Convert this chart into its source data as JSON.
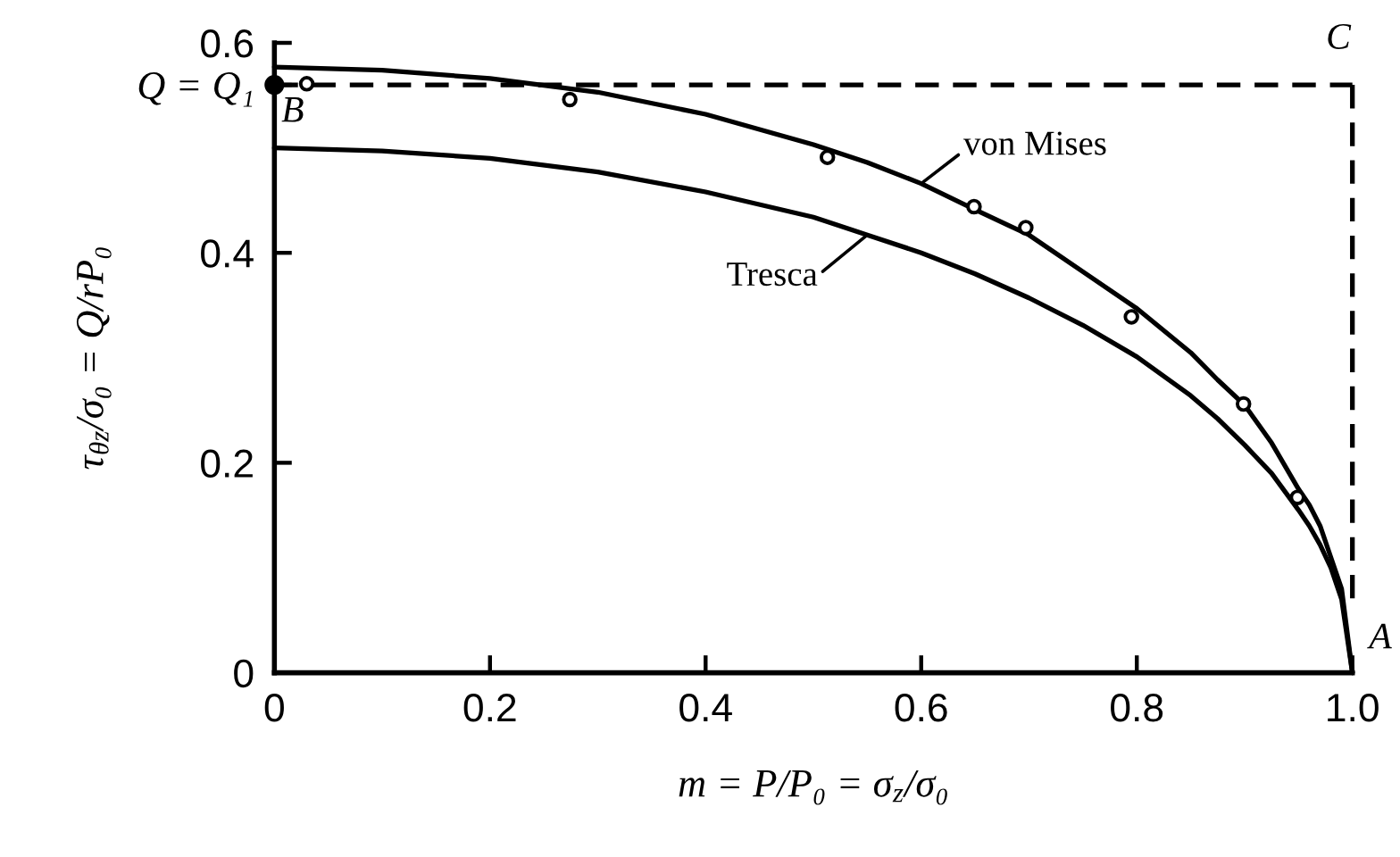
{
  "chart_data": {
    "type": "line",
    "xlabel": "m = P/P₀ = σ$_{z}$/σ₀",
    "ylabel": "τ$_{θz}$/σ₀ = Q/rP₀",
    "xlim": [
      0,
      1.0
    ],
    "ylim": [
      0,
      0.6
    ],
    "xticks": [
      0,
      0.2,
      0.4,
      0.6,
      0.8,
      {
        "value": 1.0,
        "label": "1.0"
      }
    ],
    "yticks": [
      0,
      0.2,
      0.4,
      {
        "value": 0.56,
        "label": "Q = Q₁"
      },
      0.6
    ],
    "series": [
      {
        "name": "von Mises",
        "color": "#000000",
        "x": [
          0,
          0.1,
          0.2,
          0.3,
          0.4,
          0.5,
          0.55,
          0.6,
          0.65,
          0.7,
          0.75,
          0.8,
          0.85,
          0.875,
          0.9,
          0.925,
          0.95,
          0.96,
          0.97,
          0.98,
          0.99,
          1.0
        ],
        "values": [
          0.577,
          0.574,
          0.566,
          0.553,
          0.532,
          0.503,
          0.486,
          0.466,
          0.441,
          0.417,
          0.382,
          0.347,
          0.305,
          0.279,
          0.255,
          0.219,
          0.175,
          0.16,
          0.14,
          0.11,
          0.08,
          0.0
        ]
      },
      {
        "name": "Tresca",
        "color": "#000000",
        "x": [
          0,
          0.1,
          0.2,
          0.3,
          0.4,
          0.5,
          0.55,
          0.6,
          0.65,
          0.7,
          0.75,
          0.8,
          0.85,
          0.875,
          0.9,
          0.925,
          0.95,
          0.96,
          0.97,
          0.98,
          0.99,
          1.0
        ],
        "values": [
          0.5,
          0.497,
          0.49,
          0.477,
          0.458,
          0.434,
          0.417,
          0.4,
          0.38,
          0.357,
          0.331,
          0.301,
          0.264,
          0.242,
          0.217,
          0.19,
          0.155,
          0.14,
          0.122,
          0.1,
          0.07,
          0.0
        ]
      },
      {
        "type": "scatter",
        "color": "#000000",
        "marker": "circle",
        "x": [
          0.03,
          0.274,
          0.513,
          0.649,
          0.697,
          0.795,
          0.899,
          0.949
        ],
        "values": [
          0.561,
          0.546,
          0.491,
          0.444,
          0.424,
          0.339,
          0.256,
          0.167
        ]
      },
      {
        "color": "#000000",
        "line_style": "dashed",
        "x": [
          0,
          1.0
        ],
        "values": [
          0.56,
          0.56
        ]
      },
      {
        "color": "#000000",
        "line_style": "dashed",
        "x": [
          1.0,
          1.0
        ],
        "values": [
          0.56,
          0.06
        ]
      },
      {
        "color": "#000000",
        "marker": "circle",
        "x": [
          0
        ],
        "values": [
          0.56
        ]
      }
    ],
    "annotations": [
      "B",
      "C",
      "A"
    ]
  }
}
